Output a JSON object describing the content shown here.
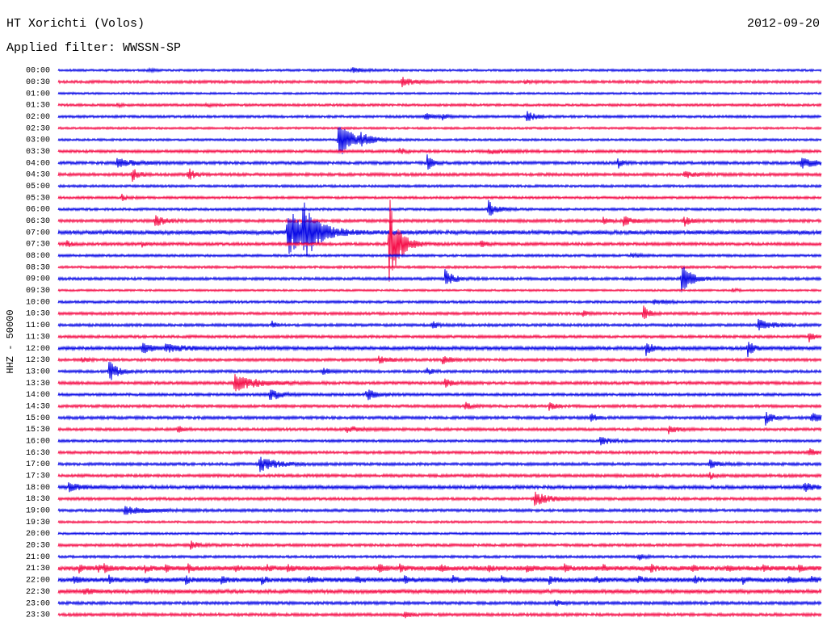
{
  "chart_data": {
    "type": "line",
    "title": "HT Xorichti (Volos)",
    "date": "2012-09-20",
    "subtitle": "Applied filter: WWSSN-SP",
    "ylabel": "HHZ - 50000",
    "xlim": [
      0,
      30
    ],
    "grid": false,
    "palette": {
      "blue": "#0a0ae6",
      "red": "#f5104a"
    },
    "rows": [
      {
        "label": "00:00",
        "color": "blue",
        "noise": 0.022,
        "events": [
          [
            3.5,
            0.03,
            0.2
          ],
          [
            11.5,
            0.05,
            0.4
          ]
        ]
      },
      {
        "label": "00:30",
        "color": "red",
        "noise": 0.028,
        "events": [
          [
            13.5,
            0.09,
            0.35
          ],
          [
            18.3,
            0.04,
            0.3
          ]
        ]
      },
      {
        "label": "01:00",
        "color": "blue",
        "noise": 0.02,
        "events": []
      },
      {
        "label": "01:30",
        "color": "red",
        "noise": 0.025,
        "events": [
          [
            2.3,
            0.03,
            0.2
          ],
          [
            5.8,
            0.03,
            0.2
          ]
        ]
      },
      {
        "label": "02:00",
        "color": "blue",
        "noise": 0.025,
        "events": [
          [
            14.4,
            0.07,
            0.25
          ],
          [
            15.1,
            0.05,
            0.2
          ],
          [
            18.4,
            0.1,
            0.3
          ]
        ]
      },
      {
        "label": "02:30",
        "color": "red",
        "noise": 0.022,
        "events": []
      },
      {
        "label": "03:00",
        "color": "blue",
        "noise": 0.022,
        "events": [
          [
            11.0,
            0.38,
            0.5
          ],
          [
            11.9,
            0.08,
            0.4
          ]
        ]
      },
      {
        "label": "03:30",
        "color": "red",
        "noise": 0.028,
        "events": [
          [
            13.4,
            0.07,
            0.2
          ],
          [
            16.9,
            0.04,
            0.6
          ]
        ]
      },
      {
        "label": "04:00",
        "color": "blue",
        "noise": 0.03,
        "events": [
          [
            2.3,
            0.08,
            0.6
          ],
          [
            14.5,
            0.2,
            0.15
          ],
          [
            22.0,
            0.1,
            0.15
          ],
          [
            29.2,
            0.1,
            0.5
          ]
        ]
      },
      {
        "label": "04:30",
        "color": "red",
        "noise": 0.03,
        "events": [
          [
            2.9,
            0.15,
            0.2
          ],
          [
            5.1,
            0.13,
            0.2
          ],
          [
            24.6,
            0.06,
            0.4
          ]
        ]
      },
      {
        "label": "05:00",
        "color": "blue",
        "noise": 0.025,
        "events": []
      },
      {
        "label": "05:30",
        "color": "red",
        "noise": 0.025,
        "events": [
          [
            2.5,
            0.06,
            0.2
          ]
        ]
      },
      {
        "label": "06:00",
        "color": "blue",
        "noise": 0.025,
        "events": [
          [
            16.9,
            0.17,
            0.3
          ]
        ]
      },
      {
        "label": "06:30",
        "color": "red",
        "noise": 0.03,
        "events": [
          [
            3.8,
            0.14,
            0.3
          ],
          [
            21.4,
            0.06,
            0.2
          ],
          [
            22.2,
            0.1,
            0.3
          ],
          [
            24.6,
            0.1,
            0.2
          ]
        ]
      },
      {
        "label": "07:00",
        "color": "blue",
        "noise": 0.04,
        "events": [
          [
            9.0,
            0.58,
            0.45
          ],
          [
            9.6,
            0.5,
            0.6
          ]
        ]
      },
      {
        "label": "07:30",
        "color": "red",
        "noise": 0.03,
        "events": [
          [
            0.3,
            0.06,
            0.2
          ],
          [
            3.3,
            0.04,
            0.2
          ],
          [
            13.0,
            1.0,
            0.35
          ],
          [
            16.6,
            0.06,
            0.2
          ]
        ]
      },
      {
        "label": "08:00",
        "color": "blue",
        "noise": 0.025,
        "events": [
          [
            22.5,
            0.04,
            0.3
          ]
        ]
      },
      {
        "label": "08:30",
        "color": "red",
        "noise": 0.025,
        "events": []
      },
      {
        "label": "09:00",
        "color": "blue",
        "noise": 0.028,
        "events": [
          [
            15.2,
            0.18,
            0.3
          ],
          [
            24.5,
            0.3,
            0.35
          ]
        ]
      },
      {
        "label": "09:30",
        "color": "red",
        "noise": 0.02,
        "events": [
          [
            26.5,
            0.03,
            0.2
          ]
        ]
      },
      {
        "label": "10:00",
        "color": "blue",
        "noise": 0.025,
        "events": [
          [
            23.4,
            0.05,
            0.4
          ]
        ]
      },
      {
        "label": "10:30",
        "color": "red",
        "noise": 0.028,
        "events": [
          [
            20.6,
            0.05,
            0.2
          ],
          [
            23.0,
            0.22,
            0.15
          ]
        ]
      },
      {
        "label": "11:00",
        "color": "blue",
        "noise": 0.028,
        "events": [
          [
            8.4,
            0.1,
            0.1
          ],
          [
            14.7,
            0.08,
            0.2
          ],
          [
            27.5,
            0.1,
            0.5
          ]
        ]
      },
      {
        "label": "11:30",
        "color": "red",
        "noise": 0.028,
        "events": [
          [
            29.5,
            0.14,
            0.15
          ]
        ]
      },
      {
        "label": "12:00",
        "color": "blue",
        "noise": 0.035,
        "events": [
          [
            3.3,
            0.14,
            0.25
          ],
          [
            4.2,
            0.06,
            0.8
          ],
          [
            23.1,
            0.15,
            0.2
          ],
          [
            27.1,
            0.16,
            0.2
          ]
        ]
      },
      {
        "label": "12:30",
        "color": "red",
        "noise": 0.028,
        "events": [
          [
            0.9,
            0.05,
            0.2
          ],
          [
            12.6,
            0.06,
            0.4
          ],
          [
            15.1,
            0.07,
            0.3
          ]
        ]
      },
      {
        "label": "13:00",
        "color": "blue",
        "noise": 0.028,
        "events": [
          [
            2.0,
            0.2,
            0.3
          ],
          [
            10.4,
            0.07,
            0.2
          ],
          [
            14.5,
            0.06,
            0.2
          ]
        ]
      },
      {
        "label": "13:30",
        "color": "red",
        "noise": 0.03,
        "events": [
          [
            6.9,
            0.16,
            0.8
          ],
          [
            15.2,
            0.07,
            0.3
          ]
        ]
      },
      {
        "label": "14:00",
        "color": "blue",
        "noise": 0.028,
        "events": [
          [
            8.3,
            0.16,
            0.3
          ],
          [
            12.1,
            0.13,
            0.3
          ]
        ]
      },
      {
        "label": "14:30",
        "color": "red",
        "noise": 0.028,
        "events": [
          [
            16.0,
            0.07,
            0.2
          ],
          [
            19.3,
            0.08,
            0.2
          ]
        ]
      },
      {
        "label": "15:00",
        "color": "blue",
        "noise": 0.03,
        "events": [
          [
            20.9,
            0.09,
            0.2
          ],
          [
            27.8,
            0.16,
            0.2
          ],
          [
            29.6,
            0.1,
            0.3
          ]
        ]
      },
      {
        "label": "15:30",
        "color": "red",
        "noise": 0.028,
        "events": [
          [
            4.7,
            0.08,
            0.15
          ],
          [
            11.3,
            0.06,
            0.5
          ],
          [
            24.0,
            0.07,
            0.3
          ]
        ]
      },
      {
        "label": "16:00",
        "color": "blue",
        "noise": 0.025,
        "events": [
          [
            21.3,
            0.07,
            0.4
          ]
        ]
      },
      {
        "label": "16:30",
        "color": "red",
        "noise": 0.028,
        "events": [
          [
            29.5,
            0.07,
            0.3
          ]
        ]
      },
      {
        "label": "17:00",
        "color": "blue",
        "noise": 0.028,
        "events": [
          [
            7.9,
            0.15,
            0.6
          ],
          [
            25.6,
            0.07,
            0.4
          ]
        ]
      },
      {
        "label": "17:30",
        "color": "red",
        "noise": 0.03,
        "events": [
          [
            25.6,
            0.07,
            0.15
          ]
        ]
      },
      {
        "label": "18:00",
        "color": "blue",
        "noise": 0.035,
        "events": [
          [
            0.4,
            0.07,
            0.4
          ],
          [
            29.3,
            0.09,
            0.3
          ]
        ]
      },
      {
        "label": "18:30",
        "color": "red",
        "noise": 0.028,
        "events": [
          [
            18.7,
            0.13,
            0.5
          ]
        ]
      },
      {
        "label": "19:00",
        "color": "blue",
        "noise": 0.028,
        "events": [
          [
            2.6,
            0.07,
            0.8
          ]
        ]
      },
      {
        "label": "19:30",
        "color": "red",
        "noise": 0.022,
        "events": []
      },
      {
        "label": "20:00",
        "color": "blue",
        "noise": 0.022,
        "events": []
      },
      {
        "label": "20:30",
        "color": "red",
        "noise": 0.028,
        "events": [
          [
            5.2,
            0.07,
            0.3
          ]
        ]
      },
      {
        "label": "21:00",
        "color": "blue",
        "noise": 0.025,
        "events": [
          [
            22.8,
            0.07,
            0.2
          ]
        ]
      },
      {
        "label": "21:30",
        "color": "red",
        "noise": 0.045,
        "events": [
          [
            0.8,
            0.07,
            0.15
          ],
          [
            1.5,
            0.07,
            0.15
          ],
          [
            1.8,
            0.06,
            0.15
          ],
          [
            3.4,
            0.07,
            0.15
          ],
          [
            4.2,
            0.06,
            0.15
          ],
          [
            5.1,
            0.07,
            0.15
          ],
          [
            6.9,
            0.06,
            0.15
          ],
          [
            8.2,
            0.06,
            0.15
          ],
          [
            9.0,
            0.06,
            0.15
          ],
          [
            12.6,
            0.07,
            0.15
          ],
          [
            13.4,
            0.07,
            0.15
          ],
          [
            15.0,
            0.06,
            0.15
          ],
          [
            16.9,
            0.06,
            0.15
          ],
          [
            18.4,
            0.06,
            0.15
          ],
          [
            19.9,
            0.06,
            0.15
          ],
          [
            21.4,
            0.06,
            0.15
          ],
          [
            23.3,
            0.06,
            0.15
          ],
          [
            24.9,
            0.06,
            0.15
          ],
          [
            26.3,
            0.06,
            0.15
          ],
          [
            27.7,
            0.06,
            0.15
          ],
          [
            29.1,
            0.06,
            0.15
          ]
        ]
      },
      {
        "label": "22:00",
        "color": "blue",
        "noise": 0.045,
        "events": [
          [
            0.6,
            0.06,
            0.15
          ],
          [
            2.0,
            0.06,
            0.15
          ],
          [
            3.4,
            0.06,
            0.15
          ],
          [
            5.0,
            0.06,
            0.15
          ],
          [
            6.4,
            0.06,
            0.15
          ],
          [
            8.0,
            0.07,
            0.15
          ],
          [
            9.8,
            0.06,
            0.15
          ],
          [
            11.7,
            0.06,
            0.15
          ],
          [
            13.6,
            0.06,
            0.15
          ],
          [
            15.5,
            0.06,
            0.15
          ],
          [
            17.4,
            0.06,
            0.15
          ],
          [
            19.3,
            0.06,
            0.15
          ],
          [
            21.1,
            0.06,
            0.15
          ],
          [
            22.8,
            0.06,
            0.15
          ],
          [
            25.0,
            0.06,
            0.15
          ],
          [
            26.9,
            0.06,
            0.15
          ],
          [
            28.7,
            0.06,
            0.15
          ],
          [
            29.6,
            0.06,
            0.15
          ]
        ]
      },
      {
        "label": "22:30",
        "color": "red",
        "noise": 0.038,
        "events": [
          [
            1.0,
            0.05,
            0.3
          ]
        ]
      },
      {
        "label": "23:00",
        "color": "blue",
        "noise": 0.03,
        "events": [
          [
            19.5,
            0.06,
            0.2
          ]
        ]
      },
      {
        "label": "23:30",
        "color": "red",
        "noise": 0.03,
        "events": [
          [
            13.6,
            0.06,
            0.2
          ]
        ]
      }
    ]
  }
}
